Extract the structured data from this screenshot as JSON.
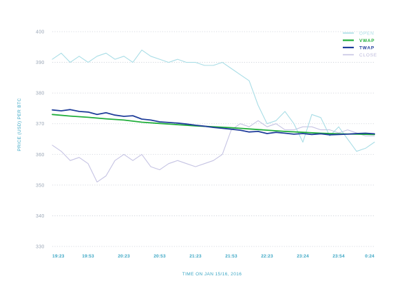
{
  "chart_data": {
    "type": "line",
    "xlabel": "TIME ON JAN 15/16, 2016",
    "ylabel": "PRICE (USD) PER BTC",
    "ylim": [
      330,
      400
    ],
    "yticks": [
      "330",
      "340",
      "350",
      "360",
      "370",
      "380",
      "390",
      "400"
    ],
    "xticks": [
      "19:23",
      "19:53",
      "20:23",
      "20:53",
      "21:23",
      "21:53",
      "22:23",
      "23:24",
      "23:54",
      "0:24"
    ],
    "grid": true,
    "legend_position": "top-right",
    "series": [
      {
        "name": "OPEN",
        "color": "#a8dde6",
        "x": [
          0,
          0.25,
          0.5,
          0.75,
          1,
          1.25,
          1.5,
          1.75,
          2,
          2.25,
          2.5,
          2.75,
          3,
          3.25,
          3.5,
          3.75,
          4,
          4.25,
          4.5,
          4.75,
          5,
          5.25,
          5.5,
          5.75,
          6,
          6.25,
          6.5,
          6.75,
          7,
          7.25,
          7.5,
          7.75,
          8,
          8.25,
          8.5,
          8.75,
          9
        ],
        "values": [
          391,
          393,
          390,
          392,
          390,
          392,
          393,
          391,
          392,
          390,
          394,
          392,
          391,
          390,
          391,
          390,
          390,
          389,
          389,
          390,
          388,
          386,
          384,
          376,
          370,
          371,
          374,
          370,
          364,
          373,
          372,
          366,
          369,
          365,
          361,
          362,
          364
        ]
      },
      {
        "name": "VWAP",
        "color": "#1fae3a",
        "x": [
          0,
          0.5,
          1,
          1.5,
          2,
          2.5,
          3,
          3.5,
          4,
          4.5,
          5,
          5.5,
          6,
          6.5,
          7,
          7.5,
          8,
          8.5,
          9
        ],
        "values": [
          373,
          372.5,
          372.1,
          371.6,
          371.2,
          370.5,
          370.1,
          369.7,
          369.3,
          369.0,
          368.7,
          368.3,
          367.9,
          367.5,
          367.2,
          366.9,
          366.7,
          366.6,
          366.5
        ]
      },
      {
        "name": "TWAP",
        "color": "#1f3d9a",
        "x": [
          0,
          0.25,
          0.5,
          0.75,
          1,
          1.25,
          1.5,
          1.75,
          2,
          2.25,
          2.5,
          2.75,
          3,
          3.25,
          3.5,
          3.75,
          4,
          4.25,
          4.5,
          4.75,
          5,
          5.25,
          5.5,
          5.75,
          6,
          6.25,
          6.5,
          6.75,
          7,
          7.25,
          7.5,
          7.75,
          8,
          8.25,
          8.5,
          8.75,
          9
        ],
        "values": [
          374.5,
          374.2,
          374.6,
          374,
          373.8,
          373,
          373.6,
          372.8,
          372.4,
          372.6,
          371.5,
          371.2,
          370.6,
          370.4,
          370.2,
          369.9,
          369.5,
          369.2,
          368.8,
          368.5,
          368.2,
          367.9,
          367.3,
          367.5,
          366.8,
          367.2,
          366.9,
          366.6,
          366.8,
          366.5,
          366.7,
          366.4,
          366.5,
          366.6,
          366.8,
          366.9,
          366.7
        ]
      },
      {
        "name": "CLOSE",
        "color": "#c5c3e3",
        "x": [
          0,
          0.25,
          0.5,
          0.75,
          1,
          1.25,
          1.5,
          1.75,
          2,
          2.25,
          2.5,
          2.75,
          3,
          3.25,
          3.5,
          3.75,
          4,
          4.25,
          4.5,
          4.75,
          5,
          5.25,
          5.5,
          5.75,
          6,
          6.25,
          6.5,
          6.75,
          7,
          7.25,
          7.5,
          7.75,
          8,
          8.25,
          8.5,
          8.75,
          9
        ],
        "values": [
          363,
          361,
          358,
          359,
          357,
          351,
          353,
          358,
          360,
          358,
          360,
          356,
          355,
          357,
          358,
          357,
          356,
          357,
          358,
          360,
          368,
          370,
          369,
          371,
          369,
          370,
          368,
          368,
          369,
          369,
          368,
          368,
          367,
          368,
          367,
          366,
          366
        ]
      }
    ]
  }
}
